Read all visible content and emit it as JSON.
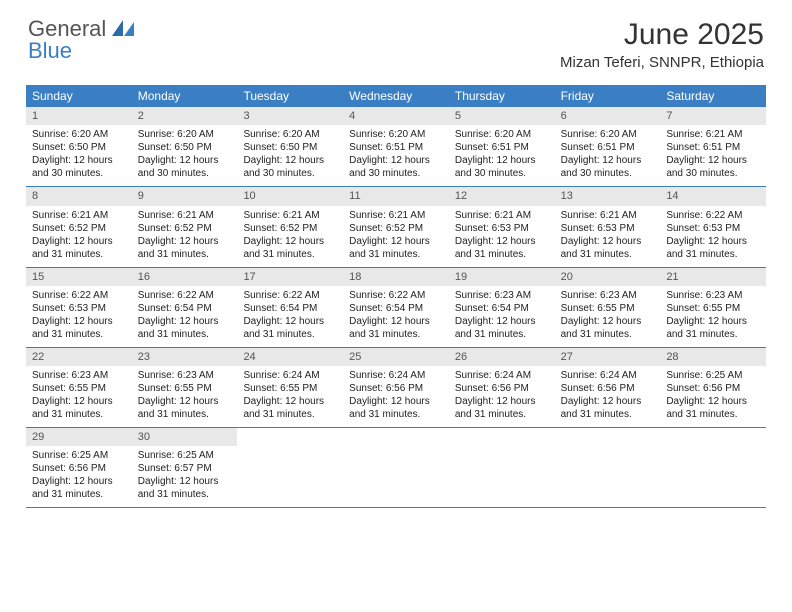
{
  "logo": {
    "line1": "General",
    "line2": "Blue",
    "color_general": "#555555",
    "color_blue": "#3a7fc4"
  },
  "title": "June 2025",
  "location": "Mizan Teferi, SNNPR, Ethiopia",
  "header_bg": "#3a7fc4",
  "daynum_bg": "#e8e8e8",
  "border_color": "#3a7fc4",
  "weekdays": [
    "Sunday",
    "Monday",
    "Tuesday",
    "Wednesday",
    "Thursday",
    "Friday",
    "Saturday"
  ],
  "weeks": [
    [
      {
        "n": "1",
        "sr": "6:20 AM",
        "ss": "6:50 PM",
        "dl": "12 hours and 30 minutes."
      },
      {
        "n": "2",
        "sr": "6:20 AM",
        "ss": "6:50 PM",
        "dl": "12 hours and 30 minutes."
      },
      {
        "n": "3",
        "sr": "6:20 AM",
        "ss": "6:50 PM",
        "dl": "12 hours and 30 minutes."
      },
      {
        "n": "4",
        "sr": "6:20 AM",
        "ss": "6:51 PM",
        "dl": "12 hours and 30 minutes."
      },
      {
        "n": "5",
        "sr": "6:20 AM",
        "ss": "6:51 PM",
        "dl": "12 hours and 30 minutes."
      },
      {
        "n": "6",
        "sr": "6:20 AM",
        "ss": "6:51 PM",
        "dl": "12 hours and 30 minutes."
      },
      {
        "n": "7",
        "sr": "6:21 AM",
        "ss": "6:51 PM",
        "dl": "12 hours and 30 minutes."
      }
    ],
    [
      {
        "n": "8",
        "sr": "6:21 AM",
        "ss": "6:52 PM",
        "dl": "12 hours and 31 minutes."
      },
      {
        "n": "9",
        "sr": "6:21 AM",
        "ss": "6:52 PM",
        "dl": "12 hours and 31 minutes."
      },
      {
        "n": "10",
        "sr": "6:21 AM",
        "ss": "6:52 PM",
        "dl": "12 hours and 31 minutes."
      },
      {
        "n": "11",
        "sr": "6:21 AM",
        "ss": "6:52 PM",
        "dl": "12 hours and 31 minutes."
      },
      {
        "n": "12",
        "sr": "6:21 AM",
        "ss": "6:53 PM",
        "dl": "12 hours and 31 minutes."
      },
      {
        "n": "13",
        "sr": "6:21 AM",
        "ss": "6:53 PM",
        "dl": "12 hours and 31 minutes."
      },
      {
        "n": "14",
        "sr": "6:22 AM",
        "ss": "6:53 PM",
        "dl": "12 hours and 31 minutes."
      }
    ],
    [
      {
        "n": "15",
        "sr": "6:22 AM",
        "ss": "6:53 PM",
        "dl": "12 hours and 31 minutes."
      },
      {
        "n": "16",
        "sr": "6:22 AM",
        "ss": "6:54 PM",
        "dl": "12 hours and 31 minutes."
      },
      {
        "n": "17",
        "sr": "6:22 AM",
        "ss": "6:54 PM",
        "dl": "12 hours and 31 minutes."
      },
      {
        "n": "18",
        "sr": "6:22 AM",
        "ss": "6:54 PM",
        "dl": "12 hours and 31 minutes."
      },
      {
        "n": "19",
        "sr": "6:23 AM",
        "ss": "6:54 PM",
        "dl": "12 hours and 31 minutes."
      },
      {
        "n": "20",
        "sr": "6:23 AM",
        "ss": "6:55 PM",
        "dl": "12 hours and 31 minutes."
      },
      {
        "n": "21",
        "sr": "6:23 AM",
        "ss": "6:55 PM",
        "dl": "12 hours and 31 minutes."
      }
    ],
    [
      {
        "n": "22",
        "sr": "6:23 AM",
        "ss": "6:55 PM",
        "dl": "12 hours and 31 minutes."
      },
      {
        "n": "23",
        "sr": "6:23 AM",
        "ss": "6:55 PM",
        "dl": "12 hours and 31 minutes."
      },
      {
        "n": "24",
        "sr": "6:24 AM",
        "ss": "6:55 PM",
        "dl": "12 hours and 31 minutes."
      },
      {
        "n": "25",
        "sr": "6:24 AM",
        "ss": "6:56 PM",
        "dl": "12 hours and 31 minutes."
      },
      {
        "n": "26",
        "sr": "6:24 AM",
        "ss": "6:56 PM",
        "dl": "12 hours and 31 minutes."
      },
      {
        "n": "27",
        "sr": "6:24 AM",
        "ss": "6:56 PM",
        "dl": "12 hours and 31 minutes."
      },
      {
        "n": "28",
        "sr": "6:25 AM",
        "ss": "6:56 PM",
        "dl": "12 hours and 31 minutes."
      }
    ],
    [
      {
        "n": "29",
        "sr": "6:25 AM",
        "ss": "6:56 PM",
        "dl": "12 hours and 31 minutes."
      },
      {
        "n": "30",
        "sr": "6:25 AM",
        "ss": "6:57 PM",
        "dl": "12 hours and 31 minutes."
      },
      null,
      null,
      null,
      null,
      null
    ]
  ],
  "labels": {
    "sunrise": "Sunrise:",
    "sunset": "Sunset:",
    "daylight": "Daylight:"
  }
}
